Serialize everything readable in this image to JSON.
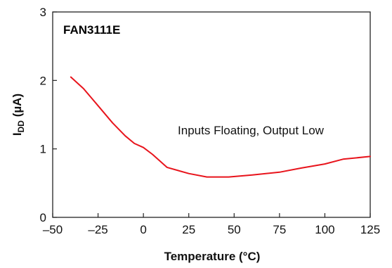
{
  "chart_data": {
    "type": "line",
    "title": "",
    "xlabel": "Temperature (°C)",
    "ylabel_main": "I",
    "ylabel_sub": "DD",
    "ylabel_unit": " (µA)",
    "xlim": [
      -50,
      125
    ],
    "ylim": [
      0,
      3
    ],
    "xticks": [
      -50,
      -25,
      0,
      25,
      50,
      75,
      100,
      125
    ],
    "xtick_labels": [
      "–50",
      "–25",
      "0",
      "25",
      "50",
      "75",
      "100",
      "125"
    ],
    "yticks": [
      0,
      1,
      2,
      3
    ],
    "ytick_labels": [
      "0",
      "1",
      "2",
      "3"
    ],
    "grid": false,
    "series": [
      {
        "name": "FAN3111E",
        "color": "#e8141c",
        "x": [
          -40,
          -33,
          -25,
          -17,
          -10,
          -5,
          0,
          5,
          13,
          25,
          35,
          47,
          60,
          75,
          87,
          100,
          110,
          125
        ],
        "y": [
          2.05,
          1.88,
          1.63,
          1.38,
          1.19,
          1.08,
          1.02,
          0.92,
          0.73,
          0.64,
          0.59,
          0.59,
          0.62,
          0.66,
          0.72,
          0.78,
          0.85,
          0.89
        ]
      }
    ],
    "annotations": [
      {
        "text": "Inputs Floating, Output Low",
        "x": 50,
        "y": 1.25
      }
    ]
  }
}
